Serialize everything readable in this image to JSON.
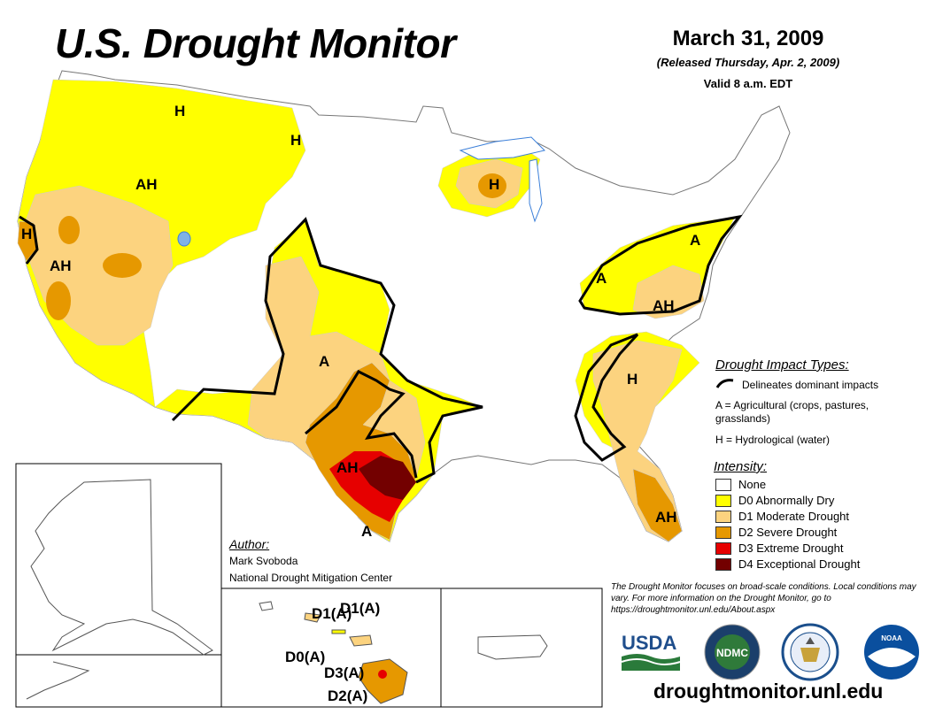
{
  "title": "U.S. Drought Monitor",
  "date": "March 31, 2009",
  "released": "(Released Thursday, Apr. 2, 2009)",
  "valid": "Valid 8 a.m. EDT",
  "colors": {
    "none": "#ffffff",
    "d0": "#ffff00",
    "d1": "#fcd37f",
    "d2": "#e69800",
    "d3": "#e60000",
    "d4": "#730000",
    "boundary": "#999999",
    "water": "#3b7fd9"
  },
  "impact_types": {
    "title": "Drought Impact Types:",
    "line_text": "Delineates dominant impacts",
    "agricultural": "A = Agricultural (crops, pastures, grasslands)",
    "hydrological": "H = Hydrological (water)"
  },
  "intensity": {
    "title": "Intensity:",
    "items": [
      {
        "label": "None",
        "color": "#ffffff"
      },
      {
        "label": "D0 Abnormally Dry",
        "color": "#ffff00"
      },
      {
        "label": "D1 Moderate Drought",
        "color": "#fcd37f"
      },
      {
        "label": "D2 Severe Drought",
        "color": "#e69800"
      },
      {
        "label": "D3 Extreme Drought",
        "color": "#e60000"
      },
      {
        "label": "D4 Exceptional Drought",
        "color": "#730000"
      }
    ]
  },
  "author": {
    "title": "Author:",
    "name": "Mark Svoboda",
    "org": "National Drought Mitigation Center"
  },
  "disclaimer": "The Drought Monitor focuses on broad-scale conditions. Local conditions may vary. For more information on the Drought Monitor, go to https://droughtmonitor.unl.edu/About.aspx",
  "website": "droughtmonitor.unl.edu",
  "map_labels": {
    "h_montana": "H",
    "h_montana2": "H",
    "ah_idaho": "AH",
    "h_california": "H",
    "ah_nevada": "AH",
    "h_wisconsin": "H",
    "a_colorado": "A",
    "ah_texas": "AH",
    "a_texas_south": "A",
    "a_ohio": "A",
    "a_pennsylvania": "A",
    "ah_virginia": "AH",
    "h_carolinas": "H",
    "ah_florida": "AH"
  },
  "hawaii_labels": {
    "kauai": "D1(A)",
    "oahu": "D1(A)",
    "maui": "D0(A)",
    "big_island_east": "D3(A)",
    "big_island_south": "D2(A)"
  },
  "logos": {
    "usda": "USDA",
    "ndmc": "NDMC",
    "noaa": "NOAA"
  }
}
